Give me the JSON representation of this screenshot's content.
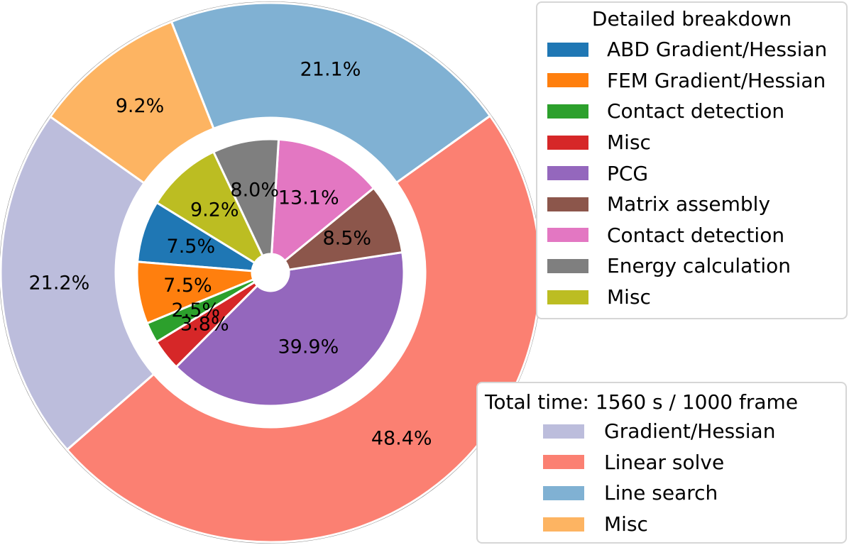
{
  "chart_data": {
    "type": "pie",
    "variant": "nested-donut",
    "outer_ring": {
      "legend_title": "Total time: 1560 s / 1000 frame",
      "slices": [
        {
          "label": "Gradient/Hessian",
          "value": 21.2,
          "text": "21.2%",
          "color": "#bcbddc"
        },
        {
          "label": "Linear solve",
          "value": 48.4,
          "text": "48.4%",
          "color": "#fb8072"
        },
        {
          "label": "Line search",
          "value": 21.1,
          "text": "21.1%",
          "color": "#80b1d3"
        },
        {
          "label": "Misc",
          "value": 9.2,
          "text": "9.2%",
          "color": "#fdb462"
        }
      ]
    },
    "inner_ring": {
      "legend_title": "Detailed breakdown",
      "slices": [
        {
          "label": "ABD Gradient/Hessian",
          "value": 7.5,
          "text": "7.5%",
          "color": "#1f77b4"
        },
        {
          "label": "FEM Gradient/Hessian",
          "value": 7.5,
          "text": "7.5%",
          "color": "#ff7f0e"
        },
        {
          "label": "Contact detection",
          "value": 2.5,
          "text": "2.5%",
          "color": "#2ca02c"
        },
        {
          "label": "Misc",
          "value": 3.8,
          "text": "3.8%",
          "color": "#d62728"
        },
        {
          "label": "PCG",
          "value": 39.9,
          "text": "39.9%",
          "color": "#9467bd"
        },
        {
          "label": "Matrix assembly",
          "value": 8.5,
          "text": "8.5%",
          "color": "#8c564b"
        },
        {
          "label": "Contact detection",
          "value": 13.1,
          "text": "13.1%",
          "color": "#e377c2"
        },
        {
          "label": "Energy calculation",
          "value": 8.0,
          "text": "8.0%",
          "color": "#7f7f7f"
        },
        {
          "label": "Misc",
          "value": 9.2,
          "text": "9.2%",
          "color": "#bcbd22"
        }
      ]
    },
    "legend_positions": {
      "detailed_breakdown": "top-right",
      "total_time": "bottom-right"
    }
  }
}
